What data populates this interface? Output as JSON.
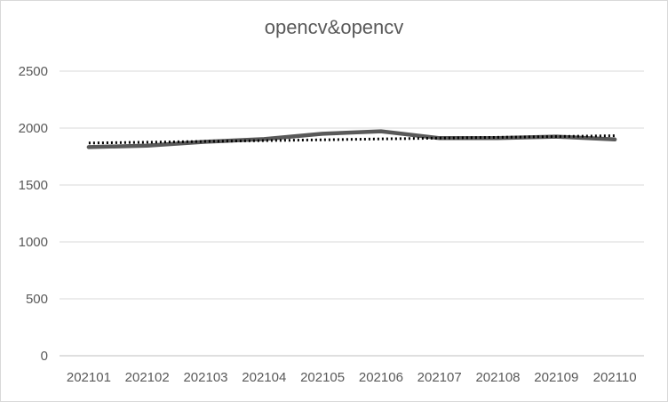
{
  "chart_data": {
    "type": "line",
    "title": "opencv&opencv",
    "categories": [
      "202101",
      "202102",
      "202103",
      "202104",
      "202105",
      "202106",
      "202107",
      "202108",
      "202109",
      "202110"
    ],
    "series": [
      {
        "values": [
          1833,
          1846,
          1880,
          1903,
          1950,
          1972,
          1912,
          1912,
          1925,
          1900
        ],
        "color": "#595959",
        "style": "solid"
      },
      {
        "values": [
          1869,
          1876,
          1883,
          1890,
          1897,
          1905,
          1912,
          1919,
          1926,
          1933
        ],
        "color": "#000000",
        "style": "dotted",
        "kind": "trendline"
      }
    ],
    "ylim": [
      0,
      2500
    ],
    "yticks": [
      0,
      500,
      1000,
      1500,
      2000,
      2500
    ],
    "grid": true,
    "legend": "none"
  }
}
